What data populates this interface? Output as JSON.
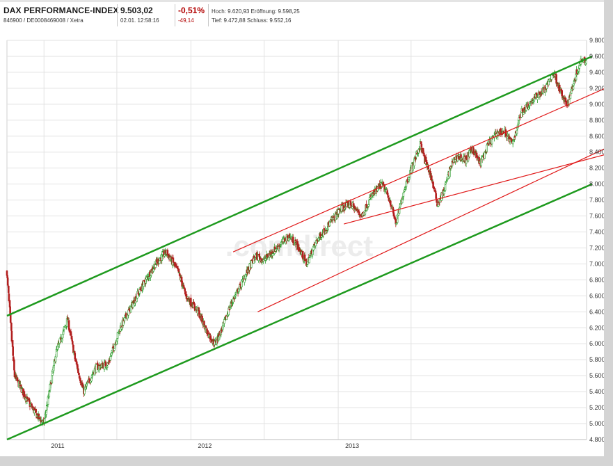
{
  "header": {
    "name": "DAX PERFORMANCE-INDEX",
    "ids": "846900 / DE0008469008 / Xetra",
    "price": "9.503,02",
    "time": "02.01. 12:58:16",
    "change_pct": "-0,51%",
    "change_abs": "-49,14",
    "hoch_label": "Hoch:",
    "hoch_value": "9.620,93",
    "eroeffnung_label": "Eröffnung:",
    "eroeffnung_value": "9.598,25",
    "tief_label": "Tief:",
    "tief_value": "9.472,88",
    "schluss_label": "Schluss:",
    "schluss_value": "9.552,16"
  },
  "watermark": ".comdirect",
  "colors": {
    "up": "#2f9e2f",
    "down": "#b21f1f",
    "main_channel": "#1e9a1e",
    "sub_channel": "#e01818",
    "grid": "#e2e2e2"
  },
  "chart_data": {
    "type": "candlestick",
    "y_axis": {
      "min": 4800,
      "max": 9800,
      "step": 200,
      "position": "right"
    },
    "y_ticks": [
      "4.800",
      "5.000",
      "5.200",
      "5.400",
      "5.600",
      "5.800",
      "6.000",
      "6.200",
      "6.400",
      "6.600",
      "6.800",
      "7.000",
      "7.200",
      "7.400",
      "7.600",
      "7.800",
      "8.000",
      "8.200",
      "8.400",
      "8.600",
      "8.800",
      "9.000",
      "9.200",
      "9.400",
      "9.600",
      "9.800"
    ],
    "x_ticks": [
      "2011",
      "2012",
      "2013"
    ],
    "x_range": [
      "2010-10",
      "2014-01-02"
    ],
    "price_path": [
      {
        "date": "2010-10-01",
        "value": 6900
      },
      {
        "date": "2010-10-20",
        "value": 5600
      },
      {
        "date": "2010-11-20",
        "value": 5300
      },
      {
        "date": "2010-12-15",
        "value": 5100
      },
      {
        "date": "2011-01-01",
        "value": 5000
      },
      {
        "date": "2011-02-01",
        "value": 5900
      },
      {
        "date": "2011-03-01",
        "value": 6300
      },
      {
        "date": "2011-03-20",
        "value": 5800
      },
      {
        "date": "2011-04-10",
        "value": 5400
      },
      {
        "date": "2011-05-10",
        "value": 5700
      },
      {
        "date": "2011-06-10",
        "value": 5750
      },
      {
        "date": "2011-07-10",
        "value": 6200
      },
      {
        "date": "2011-08-20",
        "value": 6600
      },
      {
        "date": "2011-10-05",
        "value": 7000
      },
      {
        "date": "2011-11-01",
        "value": 7150
      },
      {
        "date": "2011-12-01",
        "value": 6900
      },
      {
        "date": "2011-12-20",
        "value": 6600
      },
      {
        "date": "2012-01-20",
        "value": 6400
      },
      {
        "date": "2012-02-10",
        "value": 6150
      },
      {
        "date": "2012-03-01",
        "value": 6000
      },
      {
        "date": "2012-03-20",
        "value": 6200
      },
      {
        "date": "2012-04-10",
        "value": 6500
      },
      {
        "date": "2012-05-01",
        "value": 6700
      },
      {
        "date": "2012-05-20",
        "value": 6900
      },
      {
        "date": "2012-06-10",
        "value": 7100
      },
      {
        "date": "2012-07-01",
        "value": 7050
      },
      {
        "date": "2012-08-01",
        "value": 7200
      },
      {
        "date": "2012-09-01",
        "value": 7350
      },
      {
        "date": "2012-09-20",
        "value": 7250
      },
      {
        "date": "2012-10-15",
        "value": 7000
      },
      {
        "date": "2012-11-10",
        "value": 7300
      },
      {
        "date": "2012-12-10",
        "value": 7500
      },
      {
        "date": "2013-01-10",
        "value": 7700
      },
      {
        "date": "2013-02-01",
        "value": 7750
      },
      {
        "date": "2013-03-01",
        "value": 7600
      },
      {
        "date": "2013-03-25",
        "value": 7850
      },
      {
        "date": "2013-04-20",
        "value": 8000
      },
      {
        "date": "2013-05-10",
        "value": 7800
      },
      {
        "date": "2013-05-25",
        "value": 7500
      },
      {
        "date": "2013-06-15",
        "value": 7950
      },
      {
        "date": "2013-07-10",
        "value": 8300
      },
      {
        "date": "2013-07-25",
        "value": 8500
      },
      {
        "date": "2013-08-05",
        "value": 8300
      },
      {
        "date": "2013-08-20",
        "value": 8100
      },
      {
        "date": "2013-09-05",
        "value": 7750
      },
      {
        "date": "2013-09-20",
        "value": 7900
      },
      {
        "date": "2013-10-10",
        "value": 8250
      },
      {
        "date": "2013-10-25",
        "value": 8350
      },
      {
        "date": "2013-11-15",
        "value": 8300
      },
      {
        "date": "2013-12-01",
        "value": 8450
      },
      {
        "date": "2013-12-20",
        "value": 8250
      },
      {
        "date": "2014-01-10",
        "value": 8500
      },
      {
        "date": "2014-02-01",
        "value": 8650
      },
      {
        "date": "2014-02-20",
        "value": 8650
      },
      {
        "date": "2014-03-10",
        "value": 8500
      },
      {
        "date": "2014-04-01",
        "value": 8900
      },
      {
        "date": "2014-04-20",
        "value": 9000
      },
      {
        "date": "2014-05-10",
        "value": 9100
      },
      {
        "date": "2014-06-01",
        "value": 9200
      },
      {
        "date": "2014-06-20",
        "value": 9400
      },
      {
        "date": "2014-07-05",
        "value": 9200
      },
      {
        "date": "2014-07-15",
        "value": 9050
      },
      {
        "date": "2014-07-25",
        "value": 9000
      },
      {
        "date": "2014-08-05",
        "value": 9200
      },
      {
        "date": "2014-08-20",
        "value": 9450
      },
      {
        "date": "2014-09-01",
        "value": 9600
      },
      {
        "date": "2014-09-10",
        "value": 9510
      }
    ],
    "channel_lines": [
      {
        "name": "green-upper",
        "from": {
          "date": "2010-10-01",
          "value": 6350
        },
        "to": {
          "date": "2014-09-10",
          "value": 9600
        }
      },
      {
        "name": "green-lower",
        "from": {
          "date": "2010-10-01",
          "value": 4800
        },
        "to": {
          "date": "2014-09-10",
          "value": 8000
        }
      },
      {
        "name": "red-upper",
        "from": {
          "date": "2012-04-15",
          "value": 7150
        },
        "to": {
          "date": "2014-09-10",
          "value": 9250
        }
      },
      {
        "name": "red-middle",
        "from": {
          "date": "2012-06-15",
          "value": 6400
        },
        "to": {
          "date": "2014-09-10",
          "value": 8500
        }
      },
      {
        "name": "red-lower",
        "from": {
          "date": "2013-01-15",
          "value": 7500
        },
        "to": {
          "date": "2014-09-10",
          "value": 8400
        }
      }
    ]
  }
}
